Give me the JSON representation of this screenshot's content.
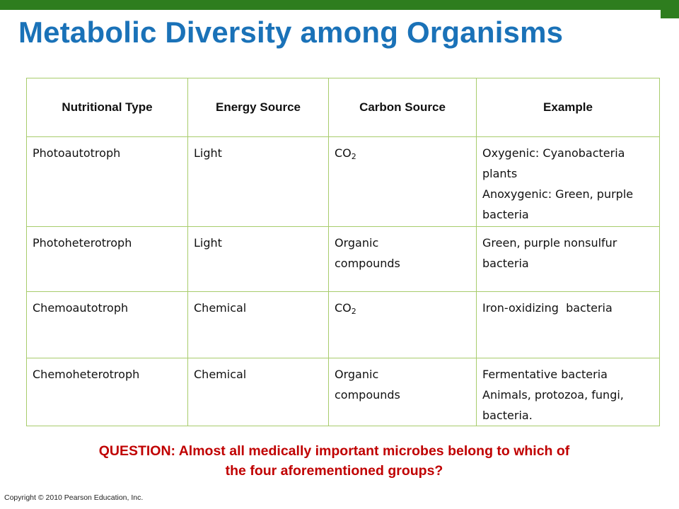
{
  "title": "Metabolic Diversity among Organisms",
  "table": {
    "headers": [
      "Nutritional Type",
      "Energy Source",
      "Carbon Source",
      "Example"
    ],
    "rows": [
      {
        "type": "Photoautotroph",
        "energy": "Light",
        "carbon": {
          "text": "CO",
          "sub": "2"
        },
        "example": [
          "Oxygenic: Cyanobacteria plants",
          "Anoxygenic: Green, purple bacteria"
        ]
      },
      {
        "type": "Photoheterotroph",
        "energy": "Light",
        "carbon": {
          "text": "Organic compounds"
        },
        "example": [
          "Green, purple nonsulfur bacteria"
        ]
      },
      {
        "type": "Chemoautotroph",
        "energy": "Chemical",
        "carbon": {
          "text": "CO",
          "sub": "2"
        },
        "example": [
          "Iron-oxidizing  bacteria"
        ]
      },
      {
        "type": "Chemoheterotroph",
        "energy": "Chemical",
        "carbon": {
          "text": "Organic compounds"
        },
        "example": [
          "Fermentative bacteria",
          "Animals, protozoa, fungi, bacteria."
        ]
      }
    ]
  },
  "question": [
    "QUESTION: Almost all medically important microbes belong to which of",
    "the four aforementioned groups?"
  ],
  "copyright": "Copyright © 2010 Pearson Education, Inc.",
  "colors": {
    "title": "#1a72b8",
    "top_bar": "#2e7d1e",
    "table_border": "#a8cc6c",
    "question": "#c00000"
  }
}
